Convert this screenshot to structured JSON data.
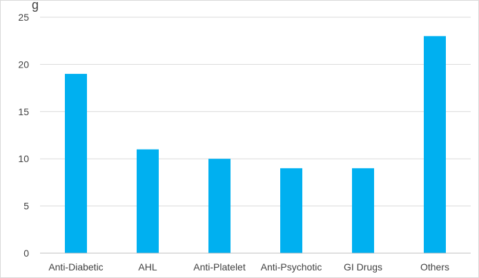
{
  "chart_data": {
    "type": "bar",
    "title_fragment": "g",
    "categories": [
      "Anti-Diabetic",
      "AHL",
      "Anti-Platelet",
      "Anti-Psychotic",
      "GI Drugs",
      "Others"
    ],
    "values": [
      19,
      11,
      10,
      9,
      9,
      23
    ],
    "ylim": [
      0,
      25
    ],
    "yticks": [
      "0",
      "5",
      "10",
      "15",
      "20",
      "25"
    ],
    "grid": true,
    "bar_color": "#00b0f0",
    "legend": "none"
  }
}
